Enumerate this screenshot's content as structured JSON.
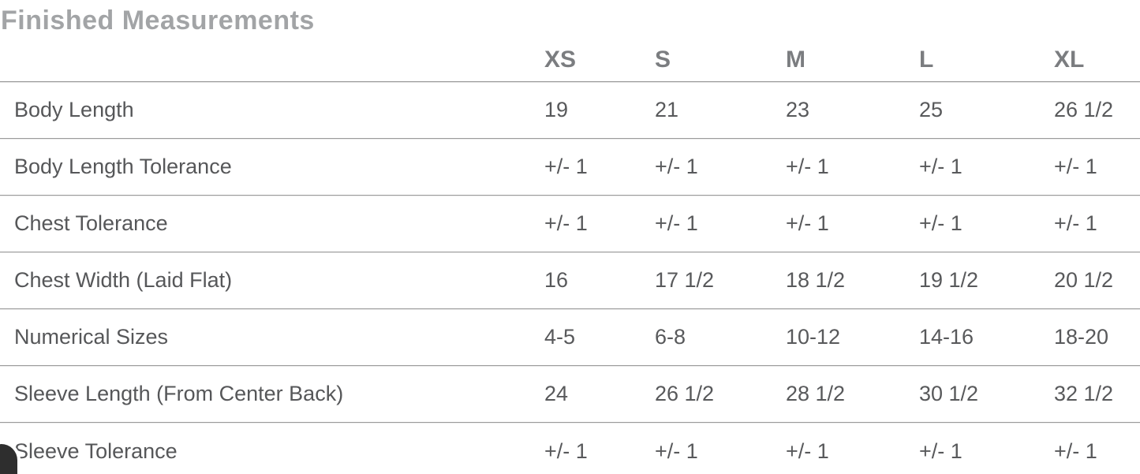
{
  "page": {
    "title": "Finished Measurements"
  },
  "colors": {
    "title_text": "#a2a4a6",
    "header_text": "#7b7d80",
    "body_text": "#58595b",
    "divider": "#9b9b9b",
    "corner_widget": "#2e2e2e"
  },
  "table": {
    "columns": [
      "XS",
      "S",
      "M",
      "L",
      "XL"
    ],
    "rows": [
      {
        "label": "Body Length",
        "values": [
          "19",
          "21",
          "23",
          "25",
          "26 1/2"
        ]
      },
      {
        "label": "Body Length Tolerance",
        "values": [
          "+/- 1",
          "+/- 1",
          "+/- 1",
          "+/- 1",
          "+/- 1"
        ]
      },
      {
        "label": "Chest Tolerance",
        "values": [
          "+/- 1",
          "+/- 1",
          "+/- 1",
          "+/- 1",
          "+/- 1"
        ]
      },
      {
        "label": "Chest Width (Laid Flat)",
        "values": [
          "16",
          "17 1/2",
          "18 1/2",
          "19 1/2",
          "20 1/2"
        ]
      },
      {
        "label": "Numerical Sizes",
        "values": [
          "4-5",
          "6-8",
          "10-12",
          "14-16",
          "18-20"
        ]
      },
      {
        "label": "Sleeve Length (From Center Back)",
        "values": [
          "24",
          "26 1/2",
          "28 1/2",
          "30 1/2",
          "32 1/2"
        ]
      },
      {
        "label": "Sleeve Tolerance",
        "values": [
          "+/- 1",
          "+/- 1",
          "+/- 1",
          "+/- 1",
          "+/- 1"
        ]
      }
    ]
  }
}
